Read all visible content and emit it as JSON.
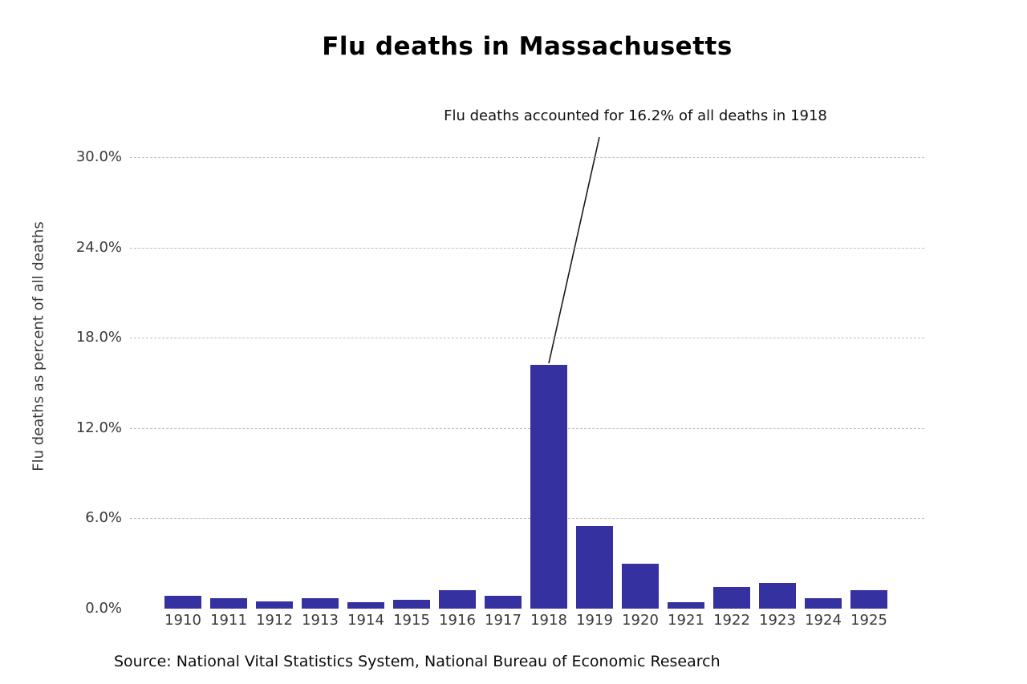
{
  "figure": {
    "title": "Flu deaths in Massachusetts",
    "ylabel": "Flu deaths as percent of all deaths",
    "source": "Source: National Vital Statistics System, National Bureau of Economic Research"
  },
  "annotation": {
    "text": "Flu deaths accounted for 16.2% of all deaths in 1918",
    "points_to_year": "1918",
    "value": "16.2%"
  },
  "colors": {
    "bar": "#3531a1",
    "gridline": "#bdbdbd",
    "tick_text": "#3a3a3a",
    "title_text": "#000000",
    "annotation_line": "#1a1a1a",
    "background": "#ffffff"
  },
  "chart_data": {
    "type": "bar",
    "title": "Flu deaths in Massachusetts",
    "xlabel": "",
    "ylabel": "Flu deaths as percent of all deaths",
    "categories": [
      "1910",
      "1911",
      "1912",
      "1913",
      "1914",
      "1915",
      "1916",
      "1917",
      "1918",
      "1919",
      "1920",
      "1921",
      "1922",
      "1923",
      "1924",
      "1925"
    ],
    "values": [
      0.85,
      0.7,
      0.5,
      0.7,
      0.4,
      0.6,
      1.2,
      0.85,
      16.2,
      5.5,
      3.0,
      0.4,
      1.45,
      1.7,
      0.7,
      1.2
    ],
    "ylim": [
      0,
      31.4
    ],
    "ytick_values": [
      0,
      6,
      12,
      18,
      24,
      30
    ],
    "ytick_labels": [
      "0.0%",
      "6.0%",
      "12.0%",
      "18.0%",
      "24.0%",
      "30.0%"
    ],
    "grid": "horizontal dashed, no gridline at 0, no axis spines",
    "legend_position": "none",
    "annotations": [
      {
        "text": "Flu deaths accounted for 16.2% of all deaths in 1918",
        "x": "1918",
        "y": 16.2
      }
    ]
  }
}
